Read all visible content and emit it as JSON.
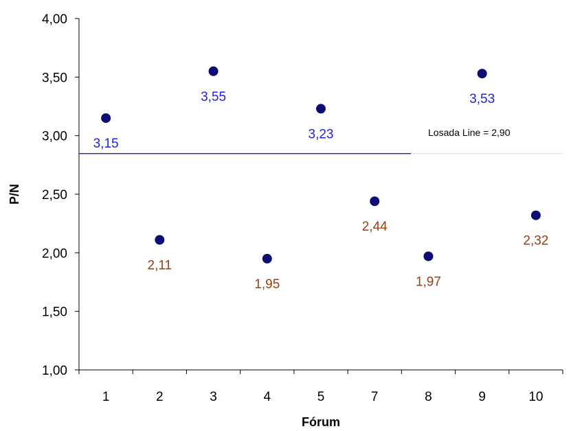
{
  "chart_data": {
    "type": "scatter",
    "title": "",
    "xlabel": "Fórum",
    "ylabel": "P/N",
    "categories": [
      "1",
      "2",
      "3",
      "4",
      "5",
      "7",
      "8",
      "9",
      "10"
    ],
    "values": [
      3.15,
      2.11,
      3.55,
      1.95,
      3.23,
      2.44,
      1.97,
      3.53,
      2.32
    ],
    "value_labels": [
      "3,15",
      "2,11",
      "3,55",
      "1,95",
      "3,23",
      "2,44",
      "1,97",
      "3,53",
      "2,32"
    ],
    "ylim": [
      1.0,
      4.0
    ],
    "yticks": [
      1.0,
      1.5,
      2.0,
      2.5,
      3.0,
      3.5,
      4.0
    ],
    "ytick_labels": [
      "1,00",
      "1,50",
      "2,00",
      "2,50",
      "3,00",
      "3,50",
      "4,00"
    ],
    "grid": false,
    "legend": "none",
    "reference_line": {
      "label": "Losada Line = 2,90",
      "value": 2.9,
      "color": "#3030a8"
    },
    "colors": {
      "marker": "#0d0d73",
      "label_above": "#1f1fe0",
      "label_below": "#9c3d10"
    }
  }
}
